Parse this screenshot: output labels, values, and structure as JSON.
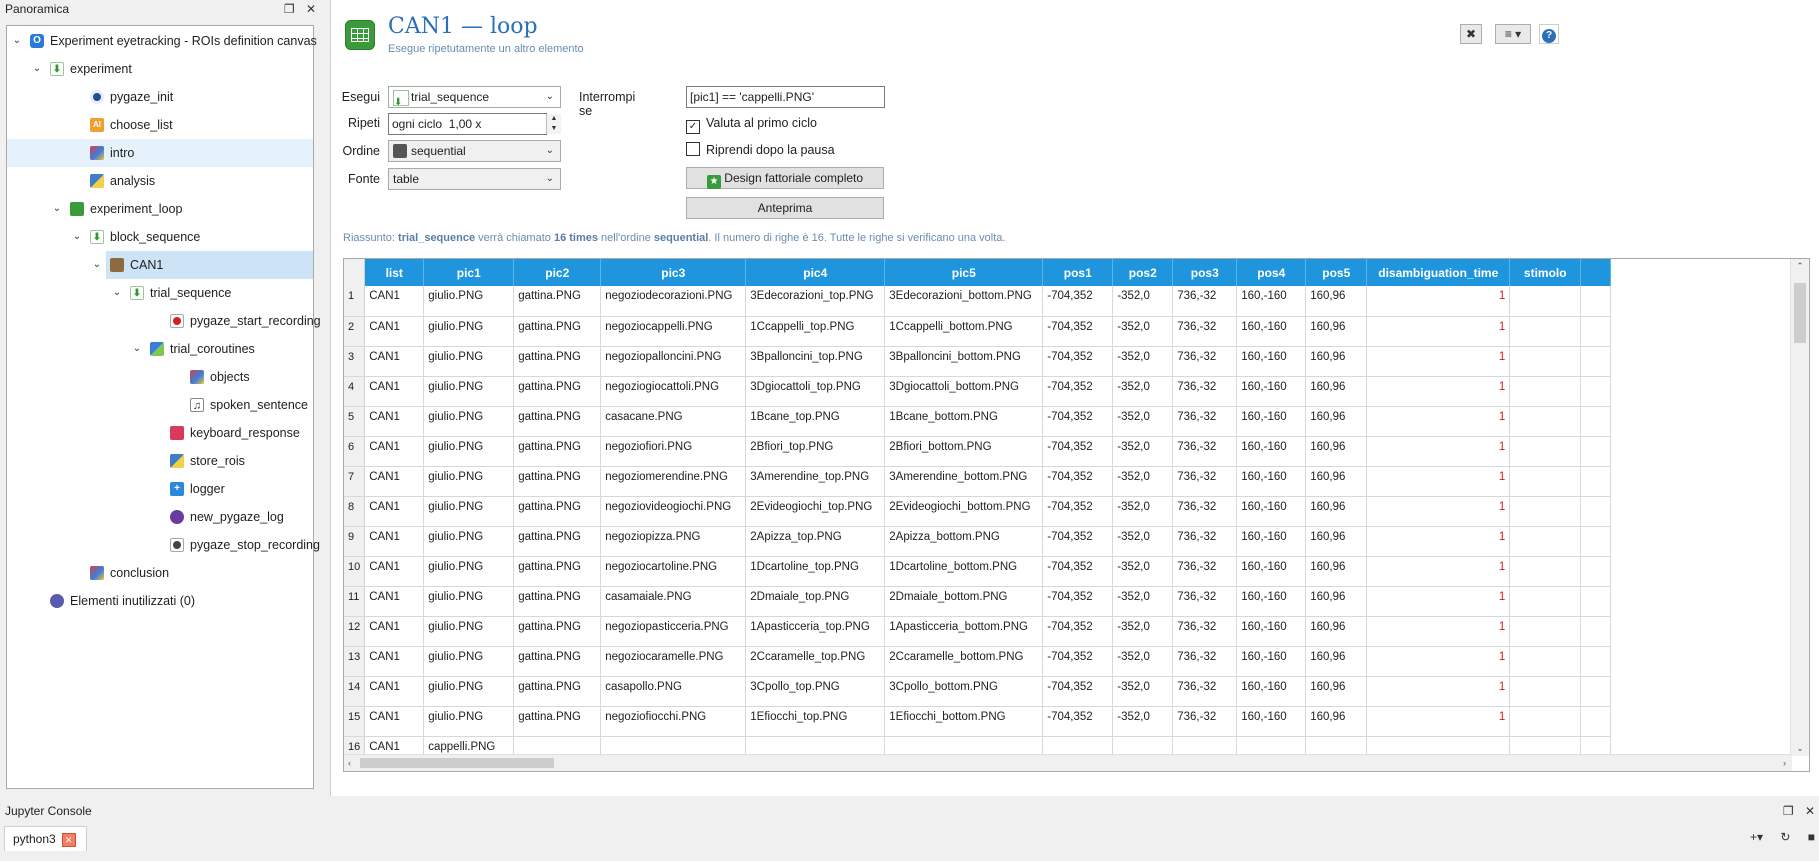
{
  "overview": {
    "title": "Panoramica",
    "float_glyph": "❐",
    "close_glyph": "✕",
    "items": [
      {
        "label": "Experiment eyetracking - ROIs definition canvas",
        "icon": "info-icon"
      },
      {
        "label": "experiment",
        "icon": "sequence-icon"
      },
      {
        "label": "pygaze_init",
        "icon": "pygaze-icon"
      },
      {
        "label": "choose_list",
        "icon": "form-icon",
        "glyph": "AI"
      },
      {
        "label": "intro",
        "icon": "sketchpad-icon"
      },
      {
        "label": "analysis",
        "icon": "inline-script-icon"
      },
      {
        "label": "experiment_loop",
        "icon": "loop-icon"
      },
      {
        "label": "block_sequence",
        "icon": "sequence-icon"
      },
      {
        "label": "CAN1",
        "icon": "loop-icon"
      },
      {
        "label": "trial_sequence",
        "icon": "sequence-icon"
      },
      {
        "label": "pygaze_start_recording",
        "icon": "record-icon"
      },
      {
        "label": "trial_coroutines",
        "icon": "coroutines-icon"
      },
      {
        "label": "objects",
        "icon": "sketchpad-icon"
      },
      {
        "label": "spoken_sentence",
        "icon": "sampler-icon",
        "glyph": "♫"
      },
      {
        "label": "keyboard_response",
        "icon": "keyboard-icon"
      },
      {
        "label": "store_rois",
        "icon": "inline-script-icon"
      },
      {
        "label": "logger",
        "icon": "logger-icon",
        "glyph": "+"
      },
      {
        "label": "new_pygaze_log",
        "icon": "pygaze-log-icon"
      },
      {
        "label": "pygaze_stop_recording",
        "icon": "stop-record-icon"
      },
      {
        "label": "conclusion",
        "icon": "sketchpad-icon"
      },
      {
        "label": "Elementi inutilizzati (0)",
        "icon": "unused-items-icon"
      }
    ]
  },
  "editor": {
    "title": "CAN1 — loop",
    "description": "Esegue ripetutamente un altro elemento",
    "top_buttons": {
      "maximize": "✖",
      "view": "≡ ▾",
      "help": "?"
    },
    "form": {
      "run_label": "Esegui",
      "run_value": "trial_sequence",
      "repeat_label": "Ripeti",
      "repeat_value": "ogni ciclo  1,00 x",
      "order_label": "Ordine",
      "order_value": "sequential",
      "source_label": "Fonte",
      "source_value": "table",
      "break_if_label": "Interrompi se",
      "break_if_value": "[pic1] == 'cappelli.PNG'",
      "eval_first_label": "Valuta al primo ciclo",
      "eval_first_checked": true,
      "resume_label": "Riprendi dopo la pausa",
      "resume_checked": false,
      "full_factorial_label": "Design fattoriale completo",
      "preview_label": "Anteprima"
    },
    "summary": {
      "prefix": "Riassunto: ",
      "item": "trial_sequence",
      "mid1": " verrà chiamato ",
      "times": "16 times",
      "mid2": " nell'ordine ",
      "order": "sequential",
      "suffix": ". Il numero di righe è 16. Tutte le righe si verificano una volta."
    }
  },
  "table": {
    "columns": [
      "list",
      "pic1",
      "pic2",
      "pic3",
      "pic4",
      "pic5",
      "pos1",
      "pos2",
      "pos3",
      "pos4",
      "pos5",
      "disambiguation_time",
      "stimolo"
    ],
    "rows": [
      [
        "1",
        "CAN1",
        "giulio.PNG",
        "gattina.PNG",
        "negoziodecorazioni.PNG",
        "3Edecorazioni_top.PNG",
        "3Edecorazioni_bottom.PNG",
        "-704,352",
        "-352,0",
        "736,-32",
        "160,-160",
        "160,96",
        "1",
        ""
      ],
      [
        "2",
        "CAN1",
        "giulio.PNG",
        "gattina.PNG",
        "negoziocappelli.PNG",
        "1Ccappelli_top.PNG",
        "1Ccappelli_bottom.PNG",
        "-704,352",
        "-352,0",
        "736,-32",
        "160,-160",
        "160,96",
        "1",
        ""
      ],
      [
        "3",
        "CAN1",
        "giulio.PNG",
        "gattina.PNG",
        "negoziopalloncini.PNG",
        "3Bpalloncini_top.PNG",
        "3Bpalloncini_bottom.PNG",
        "-704,352",
        "-352,0",
        "736,-32",
        "160,-160",
        "160,96",
        "1",
        ""
      ],
      [
        "4",
        "CAN1",
        "giulio.PNG",
        "gattina.PNG",
        "negoziogiocattoli.PNG",
        "3Dgiocattoli_top.PNG",
        "3Dgiocattoli_bottom.PNG",
        "-704,352",
        "-352,0",
        "736,-32",
        "160,-160",
        "160,96",
        "1",
        ""
      ],
      [
        "5",
        "CAN1",
        "giulio.PNG",
        "gattina.PNG",
        "casacane.PNG",
        "1Bcane_top.PNG",
        "1Bcane_bottom.PNG",
        "-704,352",
        "-352,0",
        "736,-32",
        "160,-160",
        "160,96",
        "1",
        ""
      ],
      [
        "6",
        "CAN1",
        "giulio.PNG",
        "gattina.PNG",
        "negoziofiori.PNG",
        "2Bfiori_top.PNG",
        "2Bfiori_bottom.PNG",
        "-704,352",
        "-352,0",
        "736,-32",
        "160,-160",
        "160,96",
        "1",
        ""
      ],
      [
        "7",
        "CAN1",
        "giulio.PNG",
        "gattina.PNG",
        "negoziomerendine.PNG",
        "3Amerendine_top.PNG",
        "3Amerendine_bottom.PNG",
        "-704,352",
        "-352,0",
        "736,-32",
        "160,-160",
        "160,96",
        "1",
        ""
      ],
      [
        "8",
        "CAN1",
        "giulio.PNG",
        "gattina.PNG",
        "negoziovideogiochi.PNG",
        "2Evideogiochi_top.PNG",
        "2Evideogiochi_bottom.PNG",
        "-704,352",
        "-352,0",
        "736,-32",
        "160,-160",
        "160,96",
        "1",
        ""
      ],
      [
        "9",
        "CAN1",
        "giulio.PNG",
        "gattina.PNG",
        "negoziopizza.PNG",
        "2Apizza_top.PNG",
        "2Apizza_bottom.PNG",
        "-704,352",
        "-352,0",
        "736,-32",
        "160,-160",
        "160,96",
        "1",
        ""
      ],
      [
        "10",
        "CAN1",
        "giulio.PNG",
        "gattina.PNG",
        "negoziocartoline.PNG",
        "1Dcartoline_top.PNG",
        "1Dcartoline_bottom.PNG",
        "-704,352",
        "-352,0",
        "736,-32",
        "160,-160",
        "160,96",
        "1",
        ""
      ],
      [
        "11",
        "CAN1",
        "giulio.PNG",
        "gattina.PNG",
        "casamaiale.PNG",
        "2Dmaiale_top.PNG",
        "2Dmaiale_bottom.PNG",
        "-704,352",
        "-352,0",
        "736,-32",
        "160,-160",
        "160,96",
        "1",
        ""
      ],
      [
        "12",
        "CAN1",
        "giulio.PNG",
        "gattina.PNG",
        "negoziopasticceria.PNG",
        "1Apasticceria_top.PNG",
        "1Apasticceria_bottom.PNG",
        "-704,352",
        "-352,0",
        "736,-32",
        "160,-160",
        "160,96",
        "1",
        ""
      ],
      [
        "13",
        "CAN1",
        "giulio.PNG",
        "gattina.PNG",
        "negoziocaramelle.PNG",
        "2Ccaramelle_top.PNG",
        "2Ccaramelle_bottom.PNG",
        "-704,352",
        "-352,0",
        "736,-32",
        "160,-160",
        "160,96",
        "1",
        ""
      ],
      [
        "14",
        "CAN1",
        "giulio.PNG",
        "gattina.PNG",
        "casapollo.PNG",
        "3Cpollo_top.PNG",
        "3Cpollo_bottom.PNG",
        "-704,352",
        "-352,0",
        "736,-32",
        "160,-160",
        "160,96",
        "1",
        ""
      ],
      [
        "15",
        "CAN1",
        "giulio.PNG",
        "gattina.PNG",
        "negoziofiocchi.PNG",
        "1Efiocchi_top.PNG",
        "1Efiocchi_bottom.PNG",
        "-704,352",
        "-352,0",
        "736,-32",
        "160,-160",
        "160,96",
        "1",
        ""
      ],
      [
        "16",
        "CAN1",
        "cappelli.PNG",
        "",
        "",
        "",
        "",
        "",
        "",
        "",
        "",
        "",
        "",
        ""
      ]
    ]
  },
  "jupyter": {
    "title": "Jupyter Console",
    "float_glyph": "❐",
    "close_glyph": "✕",
    "tab_label": "python3",
    "tab_close": "✕",
    "tools": [
      "+▾",
      "↻",
      "■"
    ]
  },
  "colors": {
    "accent": "#1f95de",
    "title": "#2a6fb8",
    "loop_icon": "#3a9b3a",
    "red_value": "#d42020"
  }
}
